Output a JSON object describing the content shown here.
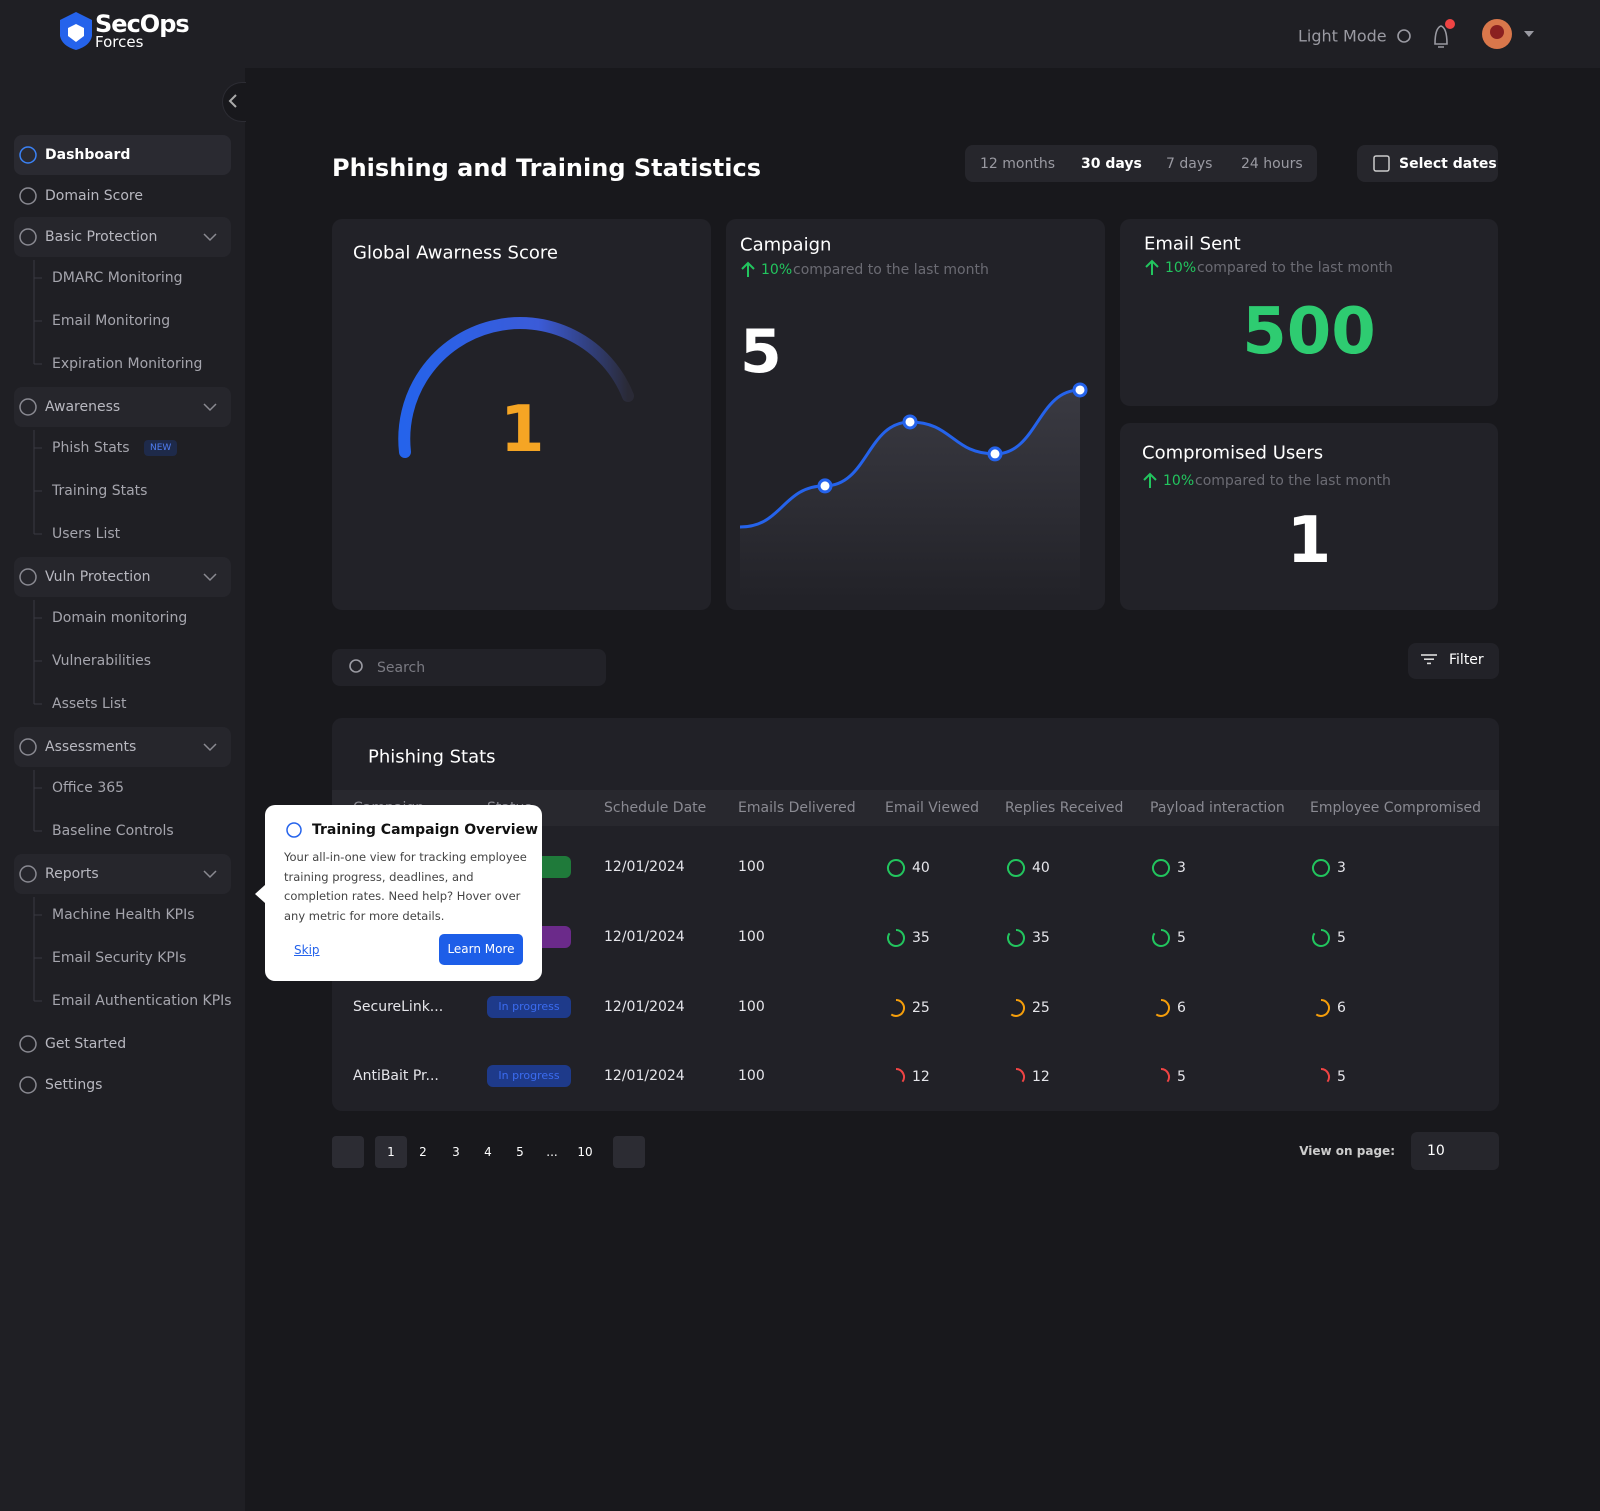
{
  "header": {
    "logo_top": "SecOps",
    "logo_bottom": "Forces",
    "theme_toggle": "Light Mode"
  },
  "sidebar": [
    {
      "label": "Dashboard",
      "active": true
    },
    {
      "label": "Domain Score"
    },
    {
      "label": "Basic Protection",
      "children": [
        {
          "label": "DMARC Monitoring"
        },
        {
          "label": "Email Monitoring"
        },
        {
          "label": "Expiration Monitoring"
        }
      ]
    },
    {
      "label": "Awareness",
      "children": [
        {
          "label": "Phish Stats",
          "badge": "NEW"
        },
        {
          "label": "Training Stats"
        },
        {
          "label": "Users List"
        }
      ]
    },
    {
      "label": "Vuln Protection",
      "children": [
        {
          "label": "Domain monitoring"
        },
        {
          "label": "Vulnerabilities"
        },
        {
          "label": "Assets List"
        }
      ]
    },
    {
      "label": "Assessments",
      "children": [
        {
          "label": "Office 365"
        },
        {
          "label": "Baseline Controls"
        }
      ]
    },
    {
      "label": "Reports",
      "children": [
        {
          "label": "Machine Health KPIs"
        },
        {
          "label": "Email Security KPIs"
        },
        {
          "label": "Email Authentication KPIs"
        }
      ]
    },
    {
      "label": "Get Started"
    },
    {
      "label": "Settings"
    }
  ],
  "page": {
    "title": "Phishing and Training Statistics",
    "ranges": [
      "12 months",
      "30 days",
      "7 days",
      "24 hours"
    ],
    "selected_range": 1,
    "select_dates": "Select dates"
  },
  "cards": {
    "awareness": {
      "title": "Global Awarness Score",
      "value": 1
    },
    "campaign": {
      "title": "Campaign",
      "change": "10%",
      "comparison": "compared to the last month",
      "value": 5,
      "trend": [
        1.5,
        2.4,
        3.8,
        3.1,
        4.5
      ]
    },
    "email_sent": {
      "title": "Email Sent",
      "change": "10%",
      "comparison": "compared to the last month",
      "value": 500
    },
    "compromised": {
      "title": "Compromised Users",
      "change": "10%",
      "comparison": "compared to the last month",
      "value": 1
    }
  },
  "toolbar": {
    "search_placeholder": "Search",
    "filter": "Filter"
  },
  "table": {
    "title": "Phishing Stats",
    "columns": [
      "Campaign",
      "Status",
      "Schedule Date",
      "Emails Delivered",
      "Email Viewed",
      "Replies Received",
      "Payload interaction",
      "Employee Compromised"
    ],
    "rows": [
      {
        "status_color": "#1f7a3a",
        "schedule_date": "12/01/2024",
        "emails_delivered": 100,
        "email_viewed": 40,
        "replies_received": 40,
        "payload_interaction": 3,
        "employee_compromised": 3,
        "ring_color": "#22c55e",
        "ring_fraction": 1
      },
      {
        "status_color": "#6b2a8a",
        "schedule_date": "12/01/2024",
        "emails_delivered": 100,
        "email_viewed": 35,
        "replies_received": 35,
        "payload_interaction": 5,
        "employee_compromised": 5,
        "ring_color": "#22c55e",
        "ring_fraction": 0.85
      },
      {
        "campaign": "SecureLink...",
        "status": "In progress",
        "status_color": "#1e3a8a",
        "schedule_date": "12/01/2024",
        "emails_delivered": 100,
        "email_viewed": 25,
        "replies_received": 25,
        "payload_interaction": 6,
        "employee_compromised": 6,
        "ring_color": "#f59e0b",
        "ring_fraction": 0.6
      },
      {
        "campaign": "AntiBait Pr...",
        "status": "In progress",
        "status_color": "#1e3a8a",
        "schedule_date": "12/01/2024",
        "emails_delivered": 100,
        "email_viewed": 12,
        "replies_received": 12,
        "payload_interaction": 5,
        "employee_compromised": 5,
        "ring_color": "#ef4444",
        "ring_fraction": 0.35
      }
    ]
  },
  "tooltip": {
    "title": "Training Campaign Overview",
    "text": "Your all-in-one view for tracking employee training progress, deadlines, and completion rates. Need help? Hover over any metric for more details.",
    "skip": "Skip",
    "action": "Learn More"
  },
  "pagination": {
    "pages": [
      "1",
      "2",
      "3",
      "4",
      "5",
      "...",
      "10"
    ],
    "current": 0,
    "page_size_label": "View on page:",
    "page_size": 10
  }
}
